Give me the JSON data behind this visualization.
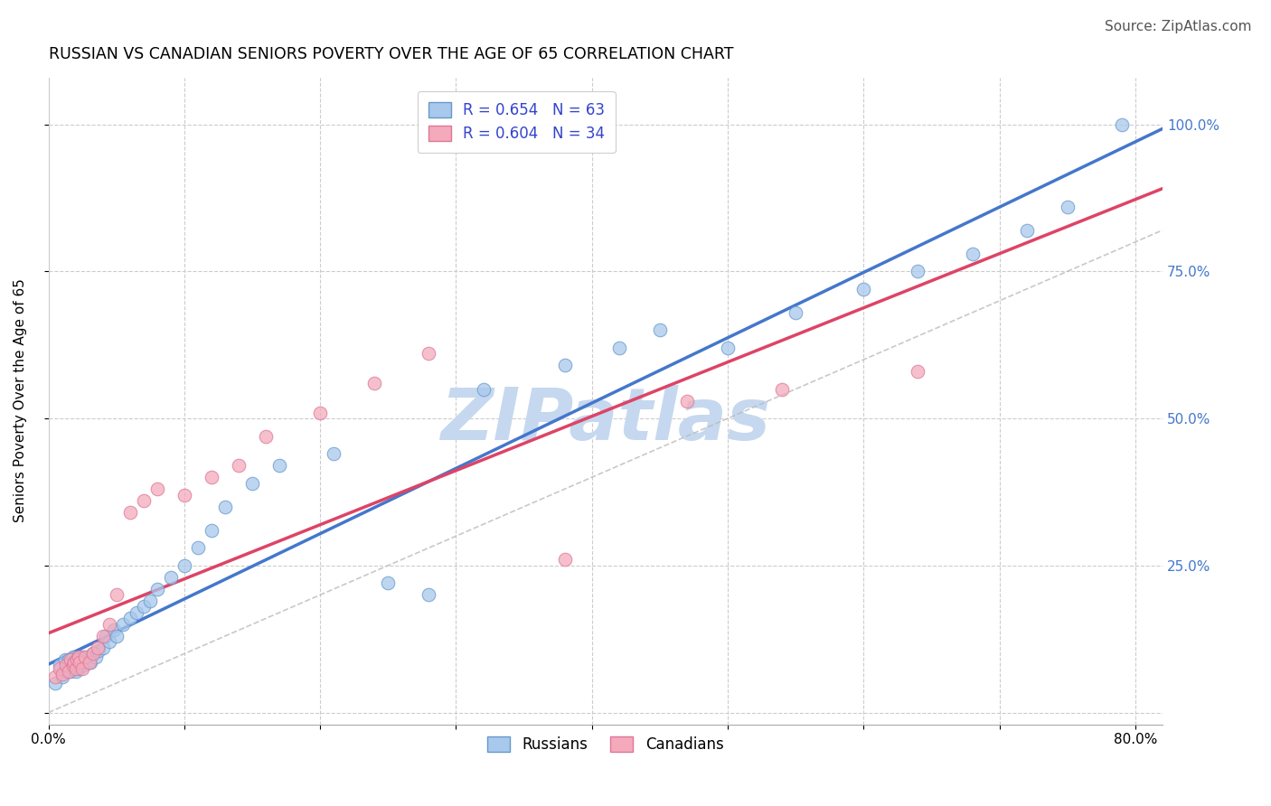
{
  "title": "RUSSIAN VS CANADIAN SENIORS POVERTY OVER THE AGE OF 65 CORRELATION CHART",
  "source": "Source: ZipAtlas.com",
  "ylabel": "Seniors Poverty Over the Age of 65",
  "xlim": [
    0.0,
    0.82
  ],
  "ylim": [
    -0.02,
    1.08
  ],
  "xtick_positions": [
    0.0,
    0.1,
    0.2,
    0.3,
    0.4,
    0.5,
    0.6,
    0.7,
    0.8
  ],
  "xticklabels": [
    "0.0%",
    "",
    "",
    "",
    "",
    "",
    "",
    "",
    "80.0%"
  ],
  "ytick_positions": [
    0.0,
    0.25,
    0.5,
    0.75,
    1.0
  ],
  "ytick_right_labels": [
    "",
    "25.0%",
    "50.0%",
    "75.0%",
    "100.0%"
  ],
  "russian_color": "#A8C8EC",
  "russian_edge_color": "#6699CC",
  "canadian_color": "#F4AABB",
  "canadian_edge_color": "#DD7799",
  "russian_line_color": "#4477CC",
  "canadian_line_color": "#DD4466",
  "ref_line_color": "#BBBBBB",
  "russian_R": 0.654,
  "russian_N": 63,
  "canadian_R": 0.604,
  "canadian_N": 34,
  "russians_label": "Russians",
  "canadians_label": "Canadians",
  "rus_x": [
    0.005,
    0.008,
    0.01,
    0.012,
    0.013,
    0.015,
    0.015,
    0.016,
    0.017,
    0.018,
    0.018,
    0.019,
    0.02,
    0.02,
    0.021,
    0.022,
    0.022,
    0.023,
    0.024,
    0.025,
    0.025,
    0.026,
    0.027,
    0.028,
    0.029,
    0.03,
    0.031,
    0.033,
    0.035,
    0.037,
    0.04,
    0.042,
    0.045,
    0.048,
    0.05,
    0.055,
    0.06,
    0.065,
    0.07,
    0.075,
    0.08,
    0.09,
    0.1,
    0.11,
    0.12,
    0.13,
    0.15,
    0.17,
    0.21,
    0.25,
    0.28,
    0.32,
    0.38,
    0.42,
    0.45,
    0.5,
    0.55,
    0.6,
    0.64,
    0.68,
    0.72,
    0.75,
    0.79
  ],
  "rus_y": [
    0.05,
    0.08,
    0.06,
    0.09,
    0.07,
    0.08,
    0.09,
    0.07,
    0.085,
    0.075,
    0.095,
    0.08,
    0.07,
    0.09,
    0.08,
    0.085,
    0.075,
    0.09,
    0.08,
    0.085,
    0.095,
    0.08,
    0.09,
    0.085,
    0.095,
    0.09,
    0.085,
    0.1,
    0.095,
    0.105,
    0.11,
    0.13,
    0.12,
    0.14,
    0.13,
    0.15,
    0.16,
    0.17,
    0.18,
    0.19,
    0.21,
    0.23,
    0.25,
    0.28,
    0.31,
    0.35,
    0.39,
    0.42,
    0.44,
    0.22,
    0.2,
    0.55,
    0.59,
    0.62,
    0.65,
    0.62,
    0.68,
    0.72,
    0.75,
    0.78,
    0.82,
    0.86,
    1.0
  ],
  "can_x": [
    0.005,
    0.008,
    0.01,
    0.013,
    0.015,
    0.016,
    0.018,
    0.019,
    0.02,
    0.021,
    0.022,
    0.023,
    0.025,
    0.027,
    0.03,
    0.033,
    0.036,
    0.04,
    0.045,
    0.05,
    0.06,
    0.07,
    0.08,
    0.1,
    0.12,
    0.14,
    0.16,
    0.2,
    0.24,
    0.28,
    0.38,
    0.47,
    0.54,
    0.64
  ],
  "can_y": [
    0.06,
    0.075,
    0.065,
    0.08,
    0.07,
    0.09,
    0.08,
    0.085,
    0.075,
    0.09,
    0.095,
    0.085,
    0.075,
    0.095,
    0.085,
    0.1,
    0.11,
    0.13,
    0.15,
    0.2,
    0.34,
    0.36,
    0.38,
    0.37,
    0.4,
    0.42,
    0.47,
    0.51,
    0.56,
    0.61,
    0.26,
    0.53,
    0.55,
    0.58
  ],
  "background_color": "#FFFFFF",
  "watermark_text": "ZIPatlas",
  "watermark_color": "#C5D8EF",
  "title_fontsize": 12.5,
  "axis_label_fontsize": 11,
  "tick_fontsize": 11,
  "legend_fontsize": 12,
  "source_fontsize": 11
}
